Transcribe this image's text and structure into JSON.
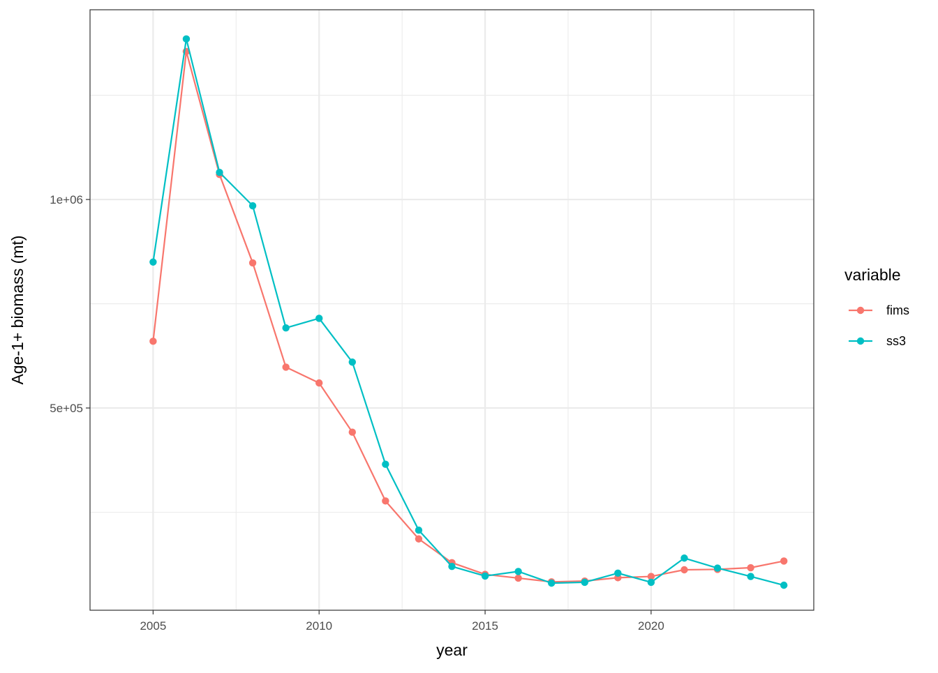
{
  "chart_data": {
    "type": "line",
    "title": "",
    "xlabel": "year",
    "ylabel": "Age-1+ biomass (mt)",
    "x": [
      2005,
      2006,
      2007,
      2008,
      2009,
      2010,
      2011,
      2012,
      2013,
      2014,
      2015,
      2016,
      2017,
      2018,
      2019,
      2020,
      2021,
      2022,
      2023,
      2024
    ],
    "series": [
      {
        "name": "fims",
        "color": "#F8766D",
        "values": [
          660000,
          1355000,
          1060000,
          848000,
          598000,
          560000,
          442000,
          277000,
          186000,
          129000,
          101000,
          92000,
          83000,
          85000,
          93000,
          96000,
          112000,
          113000,
          117000,
          133000
        ]
      },
      {
        "name": "ss3",
        "color": "#00BFC4",
        "values": [
          850000,
          1385000,
          1065000,
          985000,
          692000,
          715000,
          610000,
          365000,
          207000,
          120000,
          97000,
          108000,
          80000,
          82000,
          104000,
          82000,
          140000,
          116000,
          96000,
          75000
        ]
      }
    ],
    "xlim": [
      2003.1,
      2024.9
    ],
    "ylim": [
      15000,
      1455000
    ],
    "x_ticks": [
      2005,
      2010,
      2015,
      2020
    ],
    "x_tick_labels": [
      "2005",
      "2010",
      "2015",
      "2020"
    ],
    "x_minor_ticks": [
      2007.5,
      2012.5,
      2017.5,
      2022.5
    ],
    "y_ticks": [
      500000,
      1000000
    ],
    "y_tick_labels": [
      "5e+05",
      "1e+06"
    ],
    "y_minor_ticks": [
      250000,
      750000,
      1250000
    ],
    "grid": true,
    "theme": "bw",
    "legend": {
      "title": "variable",
      "placement": "right"
    },
    "colors": {
      "grid_major": "#EBEBEB",
      "grid_minor": "#EBEBEB",
      "panel_border": "#333333",
      "tick_label": "#4D4D4D",
      "text": "#000000"
    }
  }
}
